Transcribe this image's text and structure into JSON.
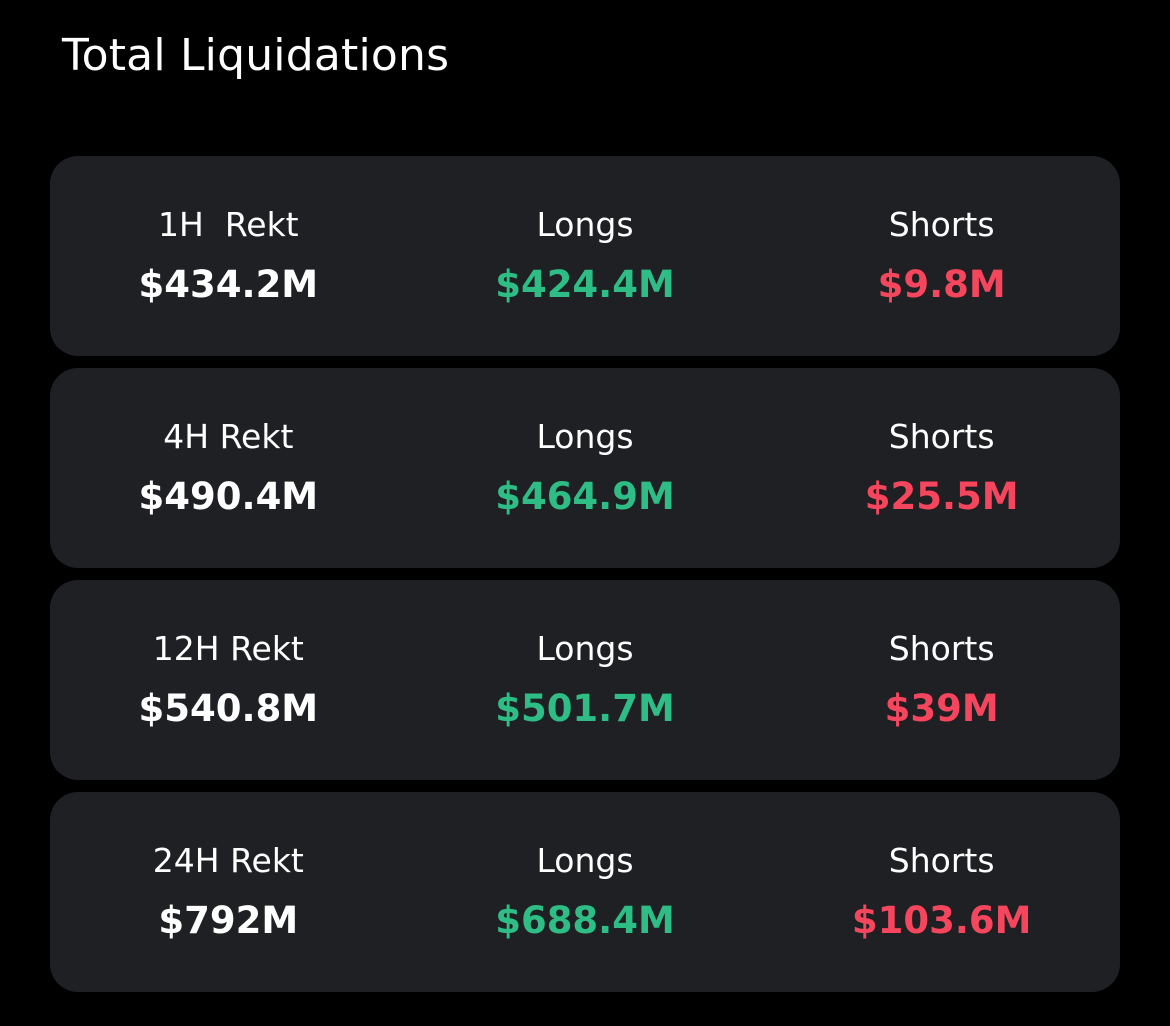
{
  "header": {
    "title": "Total Liquidations"
  },
  "colors": {
    "background": "#000000",
    "card": "#1e2023",
    "text": "#ffffff",
    "longs": "#2ebd85",
    "shorts": "#f6465d"
  },
  "rows": [
    {
      "period_label": "1H  Rekt",
      "total": "$434.2M",
      "longs_label": "Longs",
      "longs_value": "$424.4M",
      "shorts_label": "Shorts",
      "shorts_value": "$9.8M"
    },
    {
      "period_label": "4H Rekt",
      "total": "$490.4M",
      "longs_label": "Longs",
      "longs_value": "$464.9M",
      "shorts_label": "Shorts",
      "shorts_value": "$25.5M"
    },
    {
      "period_label": "12H Rekt",
      "total": "$540.8M",
      "longs_label": "Longs",
      "longs_value": "$501.7M",
      "shorts_label": "Shorts",
      "shorts_value": "$39M"
    },
    {
      "period_label": "24H Rekt",
      "total": "$792M",
      "longs_label": "Longs",
      "longs_value": "$688.4M",
      "shorts_label": "Shorts",
      "shorts_value": "$103.6M"
    }
  ]
}
